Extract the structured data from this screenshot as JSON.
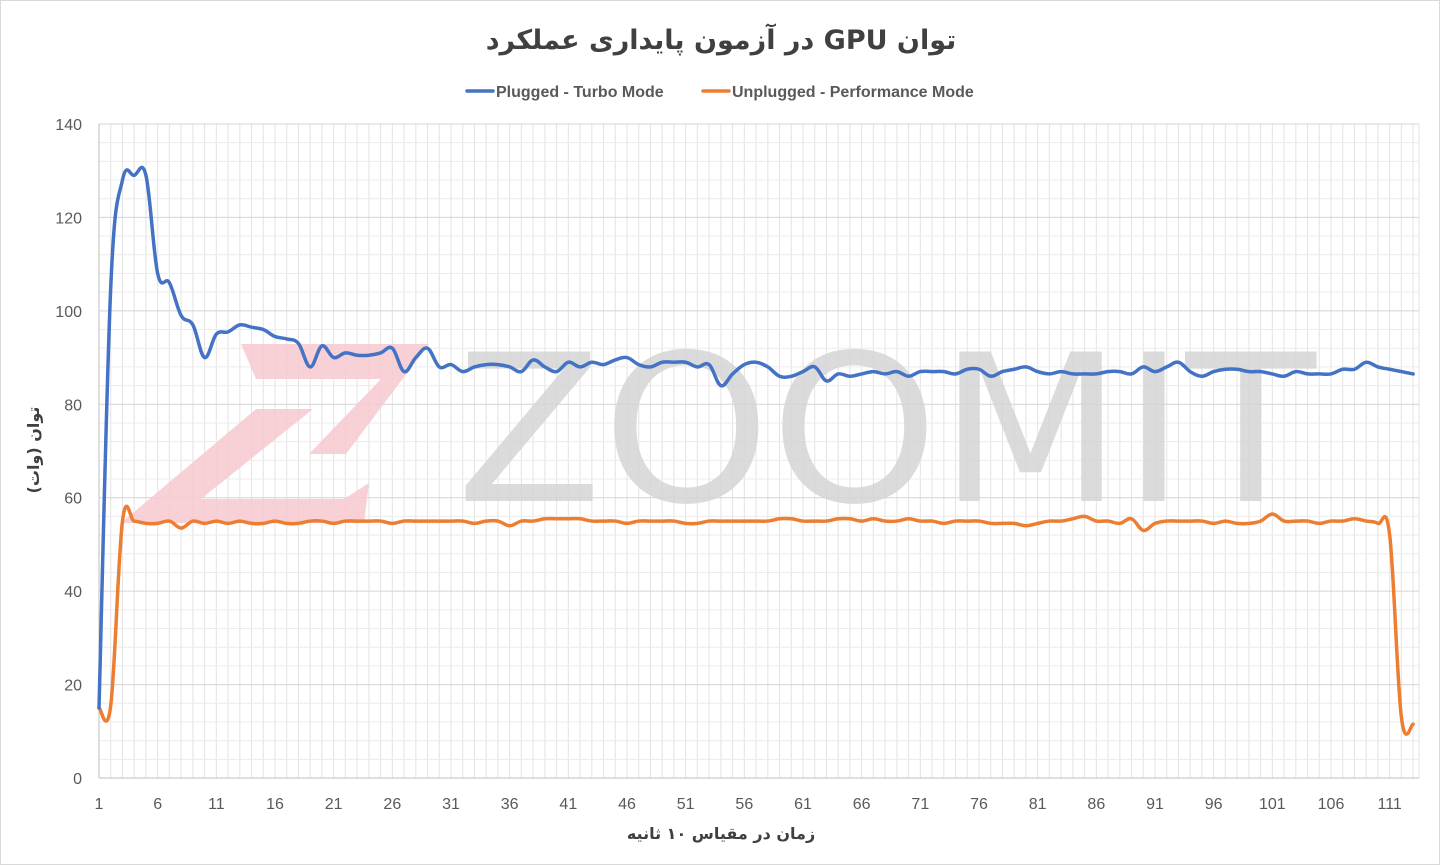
{
  "chart_data": {
    "type": "line",
    "title": "توان GPU در آزمون پایداری عملکرد",
    "xlabel": "زمان در مقیاس ۱۰ ثانیه",
    "ylabel": "توان (وات)",
    "ylim": [
      0,
      140
    ],
    "xlim": [
      1,
      113
    ],
    "y_ticks": [
      "0",
      "20",
      "40",
      "60",
      "80",
      "100",
      "120",
      "140"
    ],
    "x_ticks": [
      "1",
      "6",
      "11",
      "16",
      "21",
      "26",
      "31",
      "36",
      "41",
      "46",
      "51",
      "56",
      "61",
      "66",
      "71",
      "76",
      "81",
      "86",
      "91",
      "96",
      "101",
      "106",
      "111"
    ],
    "grid": true,
    "legend_position": "top",
    "watermark": "ZOOMIT",
    "series": [
      {
        "name": "Plugged - Turbo Mode",
        "color": "#4472C4",
        "x": [
          1,
          2,
          3,
          4,
          5,
          6,
          7,
          8,
          9,
          10,
          11,
          12,
          13,
          14,
          15,
          16,
          17,
          18,
          19,
          20,
          21,
          22,
          23,
          24,
          25,
          26,
          27,
          28,
          29,
          30,
          31,
          32,
          33,
          34,
          35,
          36,
          37,
          38,
          39,
          40,
          41,
          42,
          43,
          44,
          45,
          46,
          47,
          48,
          49,
          50,
          51,
          52,
          53,
          54,
          55,
          56,
          57,
          58,
          59,
          60,
          61,
          62,
          63,
          64,
          65,
          66,
          67,
          68,
          69,
          70,
          71,
          72,
          73,
          74,
          75,
          76,
          77,
          78,
          79,
          80,
          81,
          82,
          83,
          84,
          85,
          86,
          87,
          88,
          89,
          90,
          91,
          92,
          93,
          94,
          95,
          96,
          97,
          98,
          99,
          100,
          101,
          102,
          103,
          104,
          105,
          106,
          107,
          108,
          109,
          110,
          111,
          112,
          113
        ],
        "values": [
          15,
          105,
          128,
          129,
          129,
          108,
          106,
          99,
          97,
          90,
          95,
          95.5,
          97,
          96.5,
          96,
          94.5,
          94,
          93,
          88,
          92.5,
          90,
          91,
          90.5,
          90.5,
          91,
          92,
          87,
          90,
          92,
          88,
          88.5,
          87,
          88,
          88.5,
          88.5,
          88,
          87,
          89.5,
          88,
          87,
          89,
          88,
          89,
          88.5,
          89.5,
          90,
          88.5,
          88,
          89,
          89,
          89,
          88,
          88.5,
          84,
          86.5,
          88.5,
          89,
          88,
          86,
          86,
          87,
          88,
          85,
          86.5,
          86,
          86.5,
          87,
          86.5,
          87,
          86,
          87,
          87,
          87,
          86.5,
          87.5,
          87.5,
          86,
          87,
          87.5,
          88,
          87,
          86.5,
          87,
          86.5,
          86.5,
          86.5,
          87,
          87,
          86.5,
          88,
          87,
          88,
          89,
          87,
          86,
          87,
          87.5,
          87.5,
          87,
          87,
          86.5,
          86,
          87,
          86.5,
          86.5,
          86.5,
          87.5,
          87.5,
          89,
          88,
          87.5,
          87,
          86.5
        ]
      },
      {
        "name": "Unplugged - Performance Mode",
        "color": "#ED7D31",
        "x": [
          1,
          2,
          3,
          4,
          5,
          6,
          7,
          8,
          9,
          10,
          11,
          12,
          13,
          14,
          15,
          16,
          17,
          18,
          19,
          20,
          21,
          22,
          23,
          24,
          25,
          26,
          27,
          28,
          29,
          30,
          31,
          32,
          33,
          34,
          35,
          36,
          37,
          38,
          39,
          40,
          41,
          42,
          43,
          44,
          45,
          46,
          47,
          48,
          49,
          50,
          51,
          52,
          53,
          54,
          55,
          56,
          57,
          58,
          59,
          60,
          61,
          62,
          63,
          64,
          65,
          66,
          67,
          68,
          69,
          70,
          71,
          72,
          73,
          74,
          75,
          76,
          77,
          78,
          79,
          80,
          81,
          82,
          83,
          84,
          85,
          86,
          87,
          88,
          89,
          90,
          91,
          92,
          93,
          94,
          95,
          96,
          97,
          98,
          99,
          100,
          101,
          102,
          103,
          104,
          105,
          106,
          107,
          108,
          109,
          110,
          111,
          112,
          113
        ],
        "values": [
          15,
          15.5,
          55,
          55,
          54.5,
          54.5,
          55,
          53.5,
          55,
          54.5,
          55,
          54.5,
          55,
          54.5,
          54.5,
          55,
          54.5,
          54.5,
          55,
          55,
          54.5,
          55,
          55,
          55,
          55,
          54.5,
          55,
          55,
          55,
          55,
          55,
          55,
          54.5,
          55,
          55,
          54,
          55,
          55,
          55.5,
          55.5,
          55.5,
          55.5,
          55,
          55,
          55,
          54.5,
          55,
          55,
          55,
          55,
          54.5,
          54.5,
          55,
          55,
          55,
          55,
          55,
          55,
          55.5,
          55.5,
          55,
          55,
          55,
          55.5,
          55.5,
          55,
          55.5,
          55,
          55,
          55.5,
          55,
          55,
          54.5,
          55,
          55,
          55,
          54.5,
          54.5,
          54.5,
          54,
          54.5,
          55,
          55,
          55.5,
          56,
          55,
          55,
          54.5,
          55.5,
          53,
          54.5,
          55,
          55,
          55,
          55,
          54.5,
          55,
          54.5,
          54.5,
          55,
          56.5,
          55,
          55,
          55,
          54.5,
          55,
          55,
          55.5,
          55,
          54.5,
          52,
          13,
          11.5
        ]
      }
    ]
  }
}
